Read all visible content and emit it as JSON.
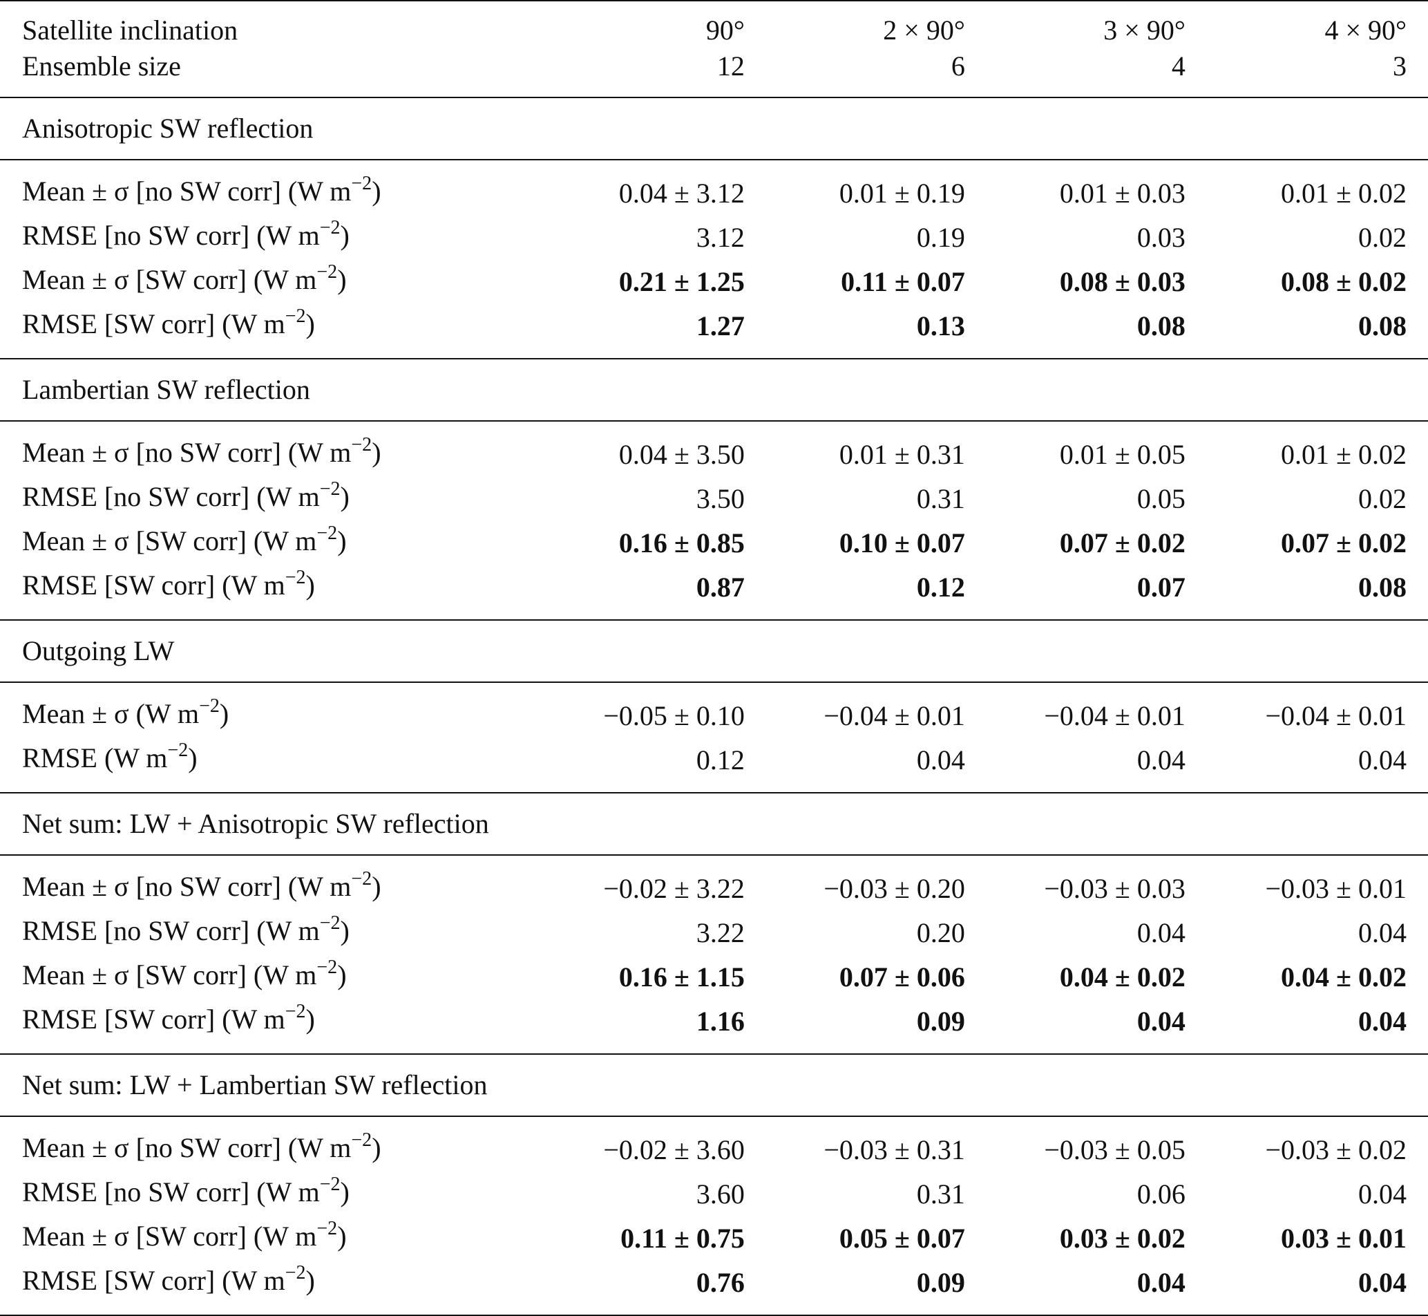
{
  "header": {
    "rows": [
      {
        "label": "Satellite inclination",
        "values": [
          "90°",
          "2 × 90°",
          "3 × 90°",
          "4 × 90°"
        ]
      },
      {
        "label": "Ensemble size",
        "values": [
          "12",
          "6",
          "4",
          "3"
        ]
      }
    ]
  },
  "units": {
    "base": "W m",
    "exp": "−2"
  },
  "sections": [
    {
      "title": "Anisotropic SW reflection",
      "rows": [
        {
          "label": "Mean ± σ [no SW corr]",
          "bold": false,
          "values": [
            "0.04 ± 3.12",
            "0.01 ± 0.19",
            "0.01 ± 0.03",
            "0.01 ± 0.02"
          ]
        },
        {
          "label": "RMSE [no SW corr]",
          "bold": false,
          "values": [
            "3.12",
            "0.19",
            "0.03",
            "0.02"
          ]
        },
        {
          "label": "Mean ± σ [SW corr]",
          "bold": true,
          "values": [
            "0.21 ± 1.25",
            "0.11 ± 0.07",
            "0.08 ± 0.03",
            "0.08 ± 0.02"
          ]
        },
        {
          "label": "RMSE [SW corr]",
          "bold": true,
          "values": [
            "1.27",
            "0.13",
            "0.08",
            "0.08"
          ]
        }
      ]
    },
    {
      "title": "Lambertian SW reflection",
      "rows": [
        {
          "label": "Mean ± σ [no SW corr]",
          "bold": false,
          "values": [
            "0.04 ± 3.50",
            "0.01 ± 0.31",
            "0.01 ± 0.05",
            "0.01 ± 0.02"
          ]
        },
        {
          "label": "RMSE [no SW corr]",
          "bold": false,
          "values": [
            "3.50",
            "0.31",
            "0.05",
            "0.02"
          ]
        },
        {
          "label": "Mean ± σ [SW corr]",
          "bold": true,
          "values": [
            "0.16 ± 0.85",
            "0.10 ± 0.07",
            "0.07 ± 0.02",
            "0.07 ± 0.02"
          ]
        },
        {
          "label": "RMSE [SW corr]",
          "bold": true,
          "values": [
            "0.87",
            "0.12",
            "0.07",
            "0.08"
          ]
        }
      ]
    },
    {
      "title": "Outgoing LW",
      "rows": [
        {
          "label": "Mean ± σ",
          "bold": false,
          "values": [
            "−0.05 ± 0.10",
            "−0.04 ± 0.01",
            "−0.04 ± 0.01",
            "−0.04 ± 0.01"
          ]
        },
        {
          "label": "RMSE",
          "bold": false,
          "values": [
            "0.12",
            "0.04",
            "0.04",
            "0.04"
          ]
        }
      ]
    },
    {
      "title": "Net sum: LW + Anisotropic SW reflection",
      "rows": [
        {
          "label": "Mean ± σ [no SW corr]",
          "bold": false,
          "values": [
            "−0.02 ± 3.22",
            "−0.03 ± 0.20",
            "−0.03 ± 0.03",
            "−0.03 ± 0.01"
          ]
        },
        {
          "label": "RMSE [no SW corr]",
          "bold": false,
          "values": [
            "3.22",
            "0.20",
            "0.04",
            "0.04"
          ]
        },
        {
          "label": "Mean ± σ [SW corr]",
          "bold": true,
          "values": [
            "0.16 ± 1.15",
            "0.07 ± 0.06",
            "0.04 ± 0.02",
            "0.04 ± 0.02"
          ]
        },
        {
          "label": "RMSE [SW corr]",
          "bold": true,
          "values": [
            "1.16",
            "0.09",
            "0.04",
            "0.04"
          ]
        }
      ]
    },
    {
      "title": "Net sum: LW + Lambertian SW reflection",
      "rows": [
        {
          "label": "Mean ± σ [no SW corr]",
          "bold": false,
          "values": [
            "−0.02 ± 3.60",
            "−0.03 ± 0.31",
            "−0.03 ± 0.05",
            "−0.03 ± 0.02"
          ]
        },
        {
          "label": "RMSE [no SW corr]",
          "bold": false,
          "values": [
            "3.60",
            "0.31",
            "0.06",
            "0.04"
          ]
        },
        {
          "label": "Mean ± σ [SW corr]",
          "bold": true,
          "values": [
            "0.11 ± 0.75",
            "0.05 ± 0.07",
            "0.03 ± 0.02",
            "0.03 ± 0.01"
          ]
        },
        {
          "label": "RMSE [SW corr]",
          "bold": true,
          "values": [
            "0.76",
            "0.09",
            "0.04",
            "0.04"
          ]
        }
      ]
    }
  ]
}
